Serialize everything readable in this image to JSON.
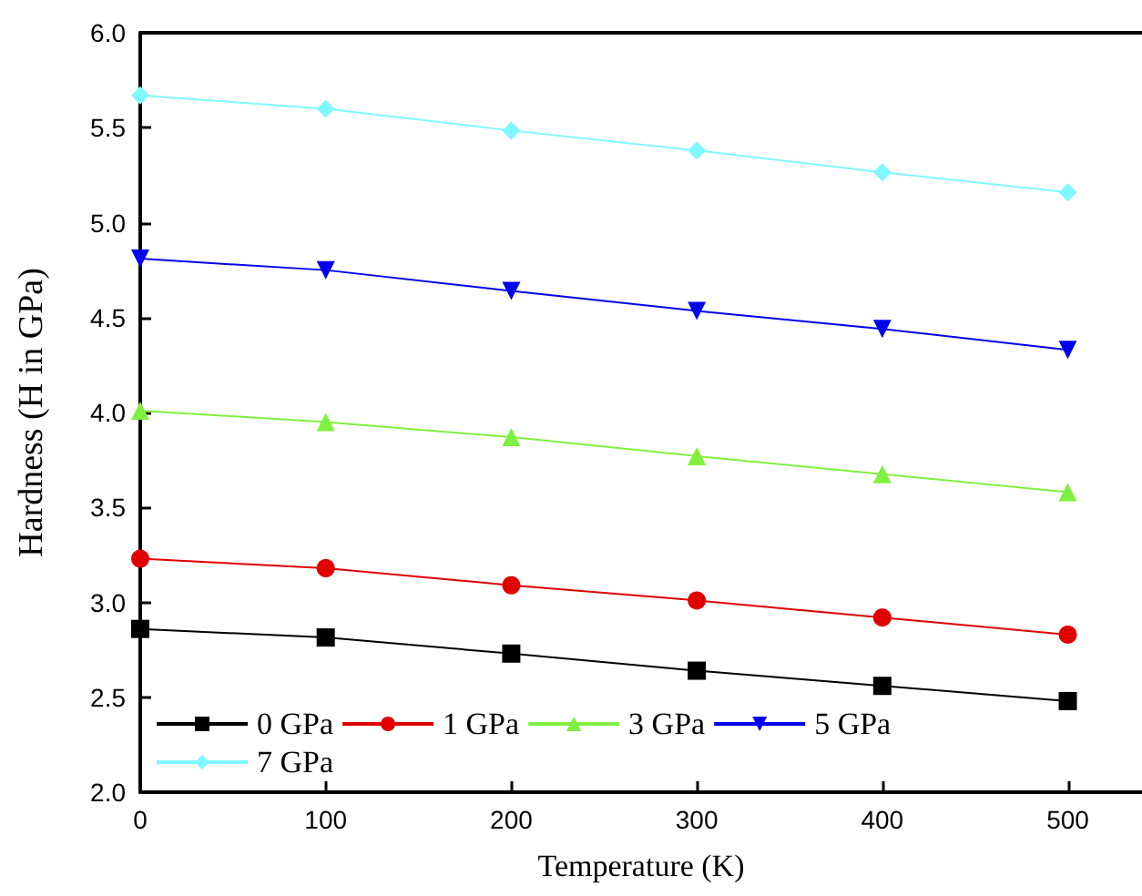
{
  "chart_data": {
    "type": "line",
    "xlabel": "Temperature (K)",
    "ylabel": "Hardness (H in GPa)",
    "x": [
      0,
      100,
      200,
      300,
      400,
      500
    ],
    "series": [
      {
        "name": "0 GPa",
        "color": "#000000",
        "marker": "square",
        "values": [
          2.86,
          2.815,
          2.73,
          2.64,
          2.56,
          2.48
        ]
      },
      {
        "name": "1 GPa",
        "color": "#e00000",
        "marker": "circle",
        "values": [
          3.23,
          3.18,
          3.09,
          3.01,
          2.92,
          2.83
        ]
      },
      {
        "name": "3 GPa",
        "color": "#80f040",
        "marker": "triangle",
        "values": [
          4.01,
          3.95,
          3.87,
          3.77,
          3.675,
          3.58
        ]
      },
      {
        "name": "5 GPa",
        "color": "#0000ee",
        "marker": "triangle-down",
        "values": [
          4.81,
          4.75,
          4.64,
          4.535,
          4.44,
          4.33
        ]
      },
      {
        "name": "7 GPa",
        "color": "#80f8ff",
        "marker": "diamond",
        "values": [
          5.67,
          5.6,
          5.485,
          5.38,
          5.265,
          5.16
        ]
      }
    ],
    "xlim": [
      0,
      540
    ],
    "xticks": [
      0,
      100,
      200,
      300,
      400,
      500
    ],
    "ylim": [
      2.0,
      6.0
    ],
    "yticks": [
      {
        "value": 2,
        "label": "2.0"
      },
      {
        "value": 2.5,
        "label": "2.5"
      },
      {
        "value": 3,
        "label": "3.0"
      },
      {
        "value": 3.5,
        "label": "3.5"
      },
      {
        "value": 4,
        "label": "4.0"
      },
      {
        "value": 4.5,
        "label": "4.5"
      },
      {
        "value": 5,
        "label": "5.0"
      },
      {
        "value": 5.5,
        "label": "5.5"
      },
      {
        "value": 6,
        "label": "6.0"
      }
    ],
    "legend": "bottom left",
    "grid": false
  }
}
